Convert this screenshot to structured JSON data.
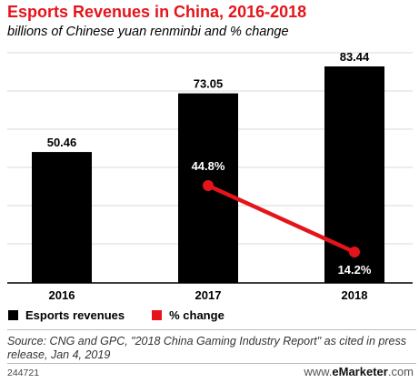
{
  "header": {
    "title": "Esports Revenues in China, 2016-2018",
    "subtitle": "billions of Chinese yuan renminbi and % change"
  },
  "chart_data": {
    "type": "bar",
    "categories": [
      "2016",
      "2017",
      "2018"
    ],
    "series": [
      {
        "name": "Esports revenues",
        "type": "bar",
        "values": [
          50.46,
          73.05,
          83.44
        ],
        "labels": [
          "50.46",
          "73.05",
          "83.44"
        ],
        "color": "#000000"
      },
      {
        "name": "% change",
        "type": "line",
        "values": [
          null,
          44.8,
          14.2
        ],
        "labels": [
          "",
          "44.8%",
          "14.2%"
        ],
        "color": "#e5141b"
      }
    ],
    "grid": true,
    "legend_position": "bottom-left"
  },
  "footer": {
    "source": "Source: CNG and GPC, \"2018 China Gaming Industry Report\" as cited in press release, Jan 4, 2019",
    "chart_id": "244721",
    "brand_prefix": "www.",
    "brand_name": "eMarketer",
    "brand_suffix": ".com"
  }
}
